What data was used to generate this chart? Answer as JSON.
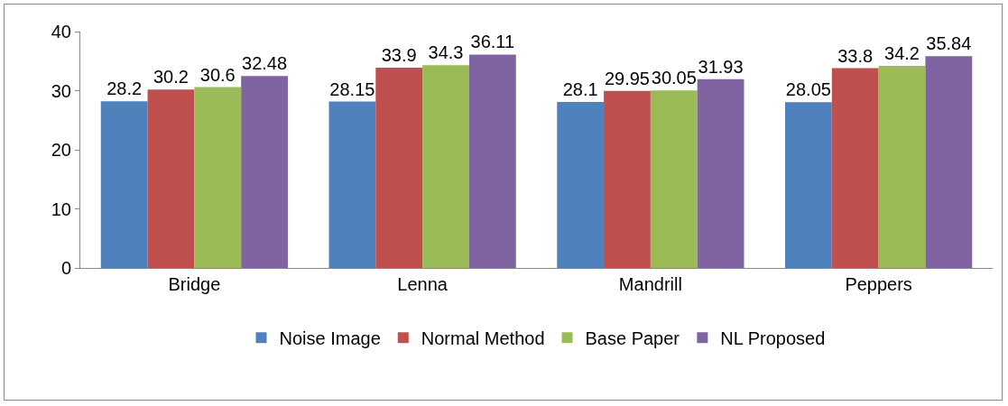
{
  "chart_data": {
    "type": "bar",
    "categories": [
      "Bridge",
      "Lenna",
      "Mandrill",
      "Peppers"
    ],
    "series": [
      {
        "name": "Noise Image",
        "color": "#4f81bd",
        "values": [
          28.2,
          28.15,
          28.1,
          28.05
        ]
      },
      {
        "name": "Normal Method",
        "color": "#c0504d",
        "values": [
          30.2,
          33.9,
          29.95,
          33.8
        ]
      },
      {
        "name": "Base Paper",
        "color": "#9bbb59",
        "values": [
          30.6,
          34.3,
          30.05,
          34.2
        ]
      },
      {
        "name": "NL Proposed",
        "color": "#8064a2",
        "values": [
          32.48,
          36.11,
          31.93,
          35.84
        ]
      }
    ],
    "ylim": [
      0,
      40
    ],
    "yticks": [
      0,
      10,
      20,
      30,
      40
    ],
    "grid": false,
    "legend": "bottom",
    "data_labels": true
  }
}
